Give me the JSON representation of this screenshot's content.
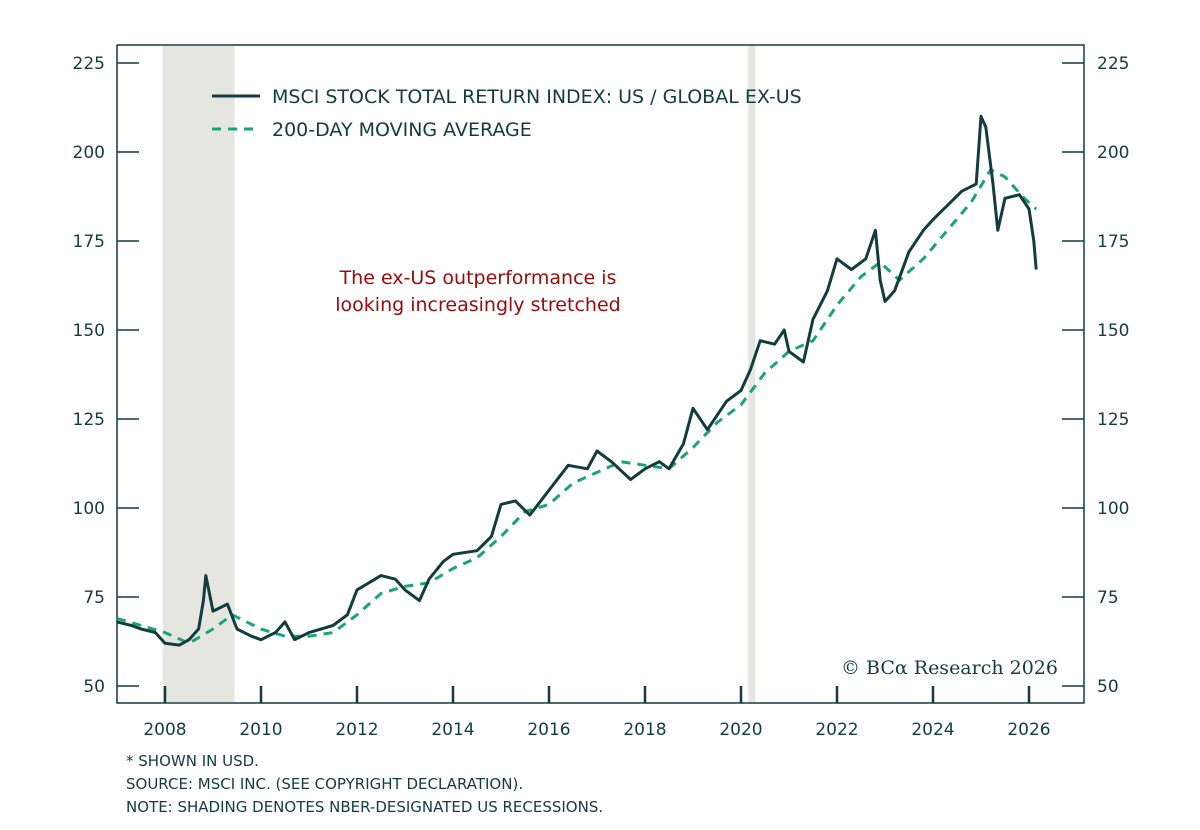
{
  "chart_data": {
    "type": "line",
    "title": "",
    "xlabel": "",
    "ylabel": "",
    "xlim": [
      2007.0,
      2026.5
    ],
    "ylim": [
      45,
      230
    ],
    "yticks": [
      50,
      75,
      100,
      125,
      150,
      175,
      200,
      225
    ],
    "xticks": [
      2008,
      2010,
      2012,
      2014,
      2016,
      2018,
      2020,
      2022,
      2024,
      2026
    ],
    "grid": false,
    "legend_position": "top-left",
    "recessions": [
      [
        2007.95,
        2009.45
      ],
      [
        2020.15,
        2020.3
      ]
    ],
    "series": [
      {
        "name": "MSCI STOCK TOTAL RETURN INDEX: US / GLOBAL EX-US",
        "color": "#123c3f",
        "style": "solid",
        "x": [
          2007.0,
          2007.3,
          2007.5,
          2007.8,
          2008.0,
          2008.3,
          2008.5,
          2008.7,
          2008.8,
          2008.85,
          2009.0,
          2009.3,
          2009.5,
          2009.8,
          2010.0,
          2010.3,
          2010.5,
          2010.7,
          2011.0,
          2011.5,
          2011.8,
          2012.0,
          2012.5,
          2012.8,
          2013.0,
          2013.3,
          2013.5,
          2013.8,
          2014.0,
          2014.5,
          2014.8,
          2015.0,
          2015.3,
          2015.6,
          2016.0,
          2016.4,
          2016.8,
          2017.0,
          2017.3,
          2017.7,
          2018.0,
          2018.3,
          2018.5,
          2018.8,
          2019.0,
          2019.3,
          2019.7,
          2020.0,
          2020.2,
          2020.4,
          2020.7,
          2020.9,
          2021.0,
          2021.3,
          2021.5,
          2021.8,
          2022.0,
          2022.3,
          2022.6,
          2022.8,
          2022.9,
          2023.0,
          2023.2,
          2023.5,
          2023.8,
          2024.0,
          2024.3,
          2024.6,
          2024.9,
          2025.0,
          2025.1,
          2025.25,
          2025.35,
          2025.5,
          2025.8,
          2026.0,
          2026.1,
          2026.15
        ],
        "values": [
          68,
          67,
          66,
          65,
          62,
          61.5,
          63,
          66,
          74,
          81,
          71,
          73,
          66,
          64,
          63,
          65,
          68,
          63,
          65,
          67,
          70,
          77,
          81,
          80,
          77,
          74,
          80,
          85,
          87,
          88,
          92,
          101,
          102,
          98,
          105,
          112,
          111,
          116,
          113,
          108,
          111,
          113,
          111,
          118,
          128,
          122,
          130,
          133,
          139,
          147,
          146,
          150,
          144,
          141,
          153,
          161,
          170,
          167,
          170,
          178,
          164,
          158,
          161,
          172,
          178,
          181,
          185,
          189,
          191,
          210,
          207,
          191,
          178,
          187,
          188,
          184,
          175,
          167
        ]
      },
      {
        "name": "200-DAY MOVING AVERAGE",
        "color": "#1aa37a",
        "style": "dashed",
        "x": [
          2007.0,
          2008.0,
          2008.5,
          2009.0,
          2009.4,
          2010.0,
          2010.5,
          2011.0,
          2011.5,
          2012.0,
          2012.5,
          2013.0,
          2013.5,
          2014.0,
          2014.5,
          2015.0,
          2015.5,
          2016.0,
          2016.5,
          2017.0,
          2017.5,
          2018.0,
          2018.5,
          2019.0,
          2019.5,
          2020.0,
          2020.5,
          2021.0,
          2021.5,
          2022.0,
          2022.5,
          2022.9,
          2023.3,
          2023.8,
          2024.3,
          2024.8,
          2025.2,
          2025.5,
          2025.9,
          2026.15
        ],
        "values": [
          69,
          65,
          62,
          66,
          70,
          66,
          64,
          64,
          65,
          70,
          76,
          78,
          79,
          83,
          86,
          92,
          99,
          101,
          107,
          110,
          113,
          112,
          111,
          117,
          124,
          129,
          138,
          144,
          147,
          157,
          165,
          169,
          164,
          170,
          178,
          186,
          195,
          193,
          187,
          184
        ]
      }
    ],
    "annotation": [
      "The ex-US outperformance is",
      "looking increasingly stretched"
    ],
    "copyright": "© BCα Research 2026"
  },
  "notes": [
    "* SHOWN IN USD.",
    "SOURCE: MSCI INC. (SEE COPYRIGHT DECLARATION).",
    "NOTE: SHADING DENOTES NBER-DESIGNATED US RECESSIONS."
  ]
}
